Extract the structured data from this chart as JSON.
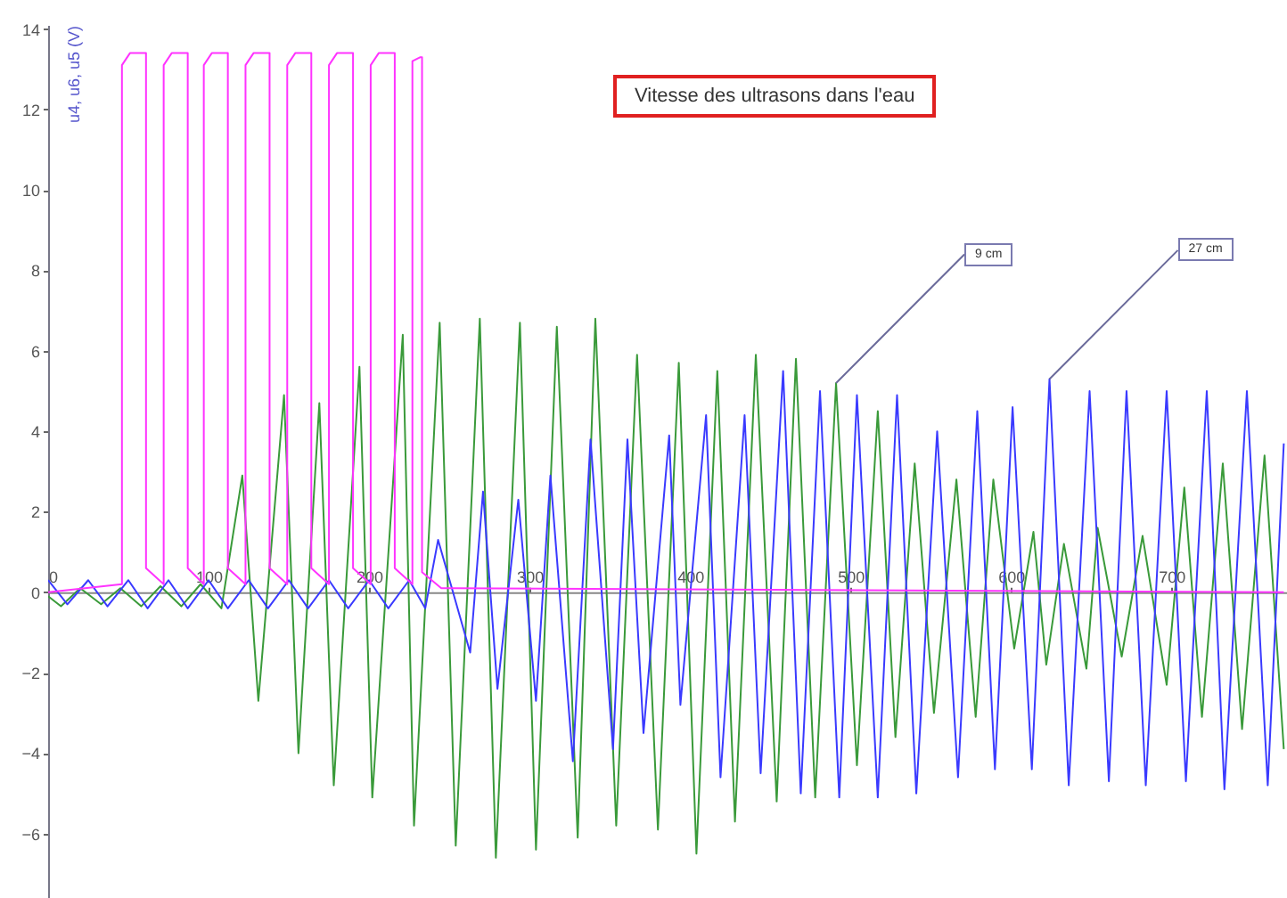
{
  "chart_data": {
    "type": "line",
    "title": "Vitesse des ultrasons dans l'eau",
    "ylabel": "u4, u6, u5 (V)",
    "xlim": [
      0,
      772
    ],
    "ylim": [
      -7.6,
      14.1
    ],
    "xticks": [
      0,
      100,
      200,
      300,
      400,
      500,
      600,
      700
    ],
    "yticks": [
      -6,
      -4,
      -2,
      0,
      2,
      4,
      6,
      8,
      10,
      12,
      14
    ],
    "annotations": [
      {
        "text": "9 cm",
        "x": 491,
        "y": 5.2
      },
      {
        "text": "27 cm",
        "x": 624,
        "y": 5.3
      }
    ],
    "series": [
      {
        "color": "#3a9a3a",
        "x": [
          0,
          8,
          20,
          33,
          45,
          58,
          70,
          83,
          95,
          108,
          121,
          131,
          147,
          156,
          169,
          178,
          194,
          202,
          221,
          228,
          244,
          254,
          269,
          279,
          294,
          304,
          317,
          330,
          341,
          354,
          367,
          380,
          393,
          404,
          417,
          428,
          441,
          454,
          466,
          478,
          491,
          504,
          517,
          528,
          540,
          552,
          566,
          578,
          589,
          602,
          614,
          622,
          633,
          647,
          654,
          669,
          682,
          697,
          708,
          719,
          732,
          744,
          758,
          770
        ],
        "values": [
          -0.1,
          -0.35,
          0.1,
          -0.3,
          0.1,
          -0.35,
          0.15,
          -0.35,
          0.2,
          -0.4,
          2.9,
          -2.7,
          4.9,
          -4.0,
          4.7,
          -4.8,
          5.6,
          -5.1,
          6.4,
          -5.8,
          6.7,
          -6.3,
          6.8,
          -6.6,
          6.7,
          -6.4,
          6.6,
          -6.1,
          6.8,
          -5.8,
          5.9,
          -5.9,
          5.7,
          -6.5,
          5.5,
          -5.7,
          5.9,
          -5.2,
          5.8,
          -5.1,
          5.2,
          -4.3,
          4.5,
          -3.6,
          3.2,
          -3.0,
          2.8,
          -3.1,
          2.8,
          -1.4,
          1.5,
          -1.8,
          1.2,
          -1.9,
          1.6,
          -1.6,
          1.4,
          -2.3,
          2.6,
          -3.1,
          3.2,
          -3.4,
          3.4,
          -3.9
        ]
      },
      {
        "color": "#3a3aff",
        "x": [
          0,
          12,
          25,
          37,
          50,
          62,
          75,
          87,
          100,
          112,
          125,
          137,
          150,
          162,
          175,
          187,
          200,
          212,
          225,
          235,
          243,
          263,
          271,
          280,
          293,
          304,
          313,
          327,
          338,
          352,
          361,
          371,
          387,
          394,
          410,
          419,
          434,
          444,
          458,
          469,
          481,
          493,
          504,
          517,
          529,
          541,
          554,
          567,
          579,
          590,
          601,
          613,
          624,
          636,
          649,
          661,
          672,
          684,
          697,
          709,
          722,
          733,
          747,
          760,
          770
        ],
        "values": [
          0.3,
          -0.3,
          0.3,
          -0.35,
          0.3,
          -0.4,
          0.3,
          -0.4,
          0.3,
          -0.4,
          0.3,
          -0.4,
          0.3,
          -0.4,
          0.3,
          -0.4,
          0.3,
          -0.4,
          0.3,
          -0.4,
          1.3,
          -1.5,
          2.5,
          -2.4,
          2.3,
          -2.7,
          2.9,
          -4.2,
          3.8,
          -3.9,
          3.8,
          -3.5,
          3.9,
          -2.8,
          4.4,
          -4.6,
          4.4,
          -4.5,
          5.5,
          -5.0,
          5.0,
          -5.1,
          4.9,
          -5.1,
          4.9,
          -5.0,
          4.0,
          -4.6,
          4.5,
          -4.4,
          4.6,
          -4.4,
          5.3,
          -4.8,
          5.0,
          -4.7,
          5.0,
          -4.8,
          5.0,
          -4.7,
          5.0,
          -4.9,
          5.0,
          -4.8,
          3.7
        ]
      },
      {
        "color": "#ff33ff",
        "x": [
          0,
          46,
          46,
          51,
          61,
          61,
          72,
          72,
          77,
          87,
          87,
          97,
          97,
          102,
          112,
          112,
          123,
          123,
          128,
          138,
          138,
          149,
          149,
          154,
          164,
          164,
          175,
          175,
          180,
          190,
          190,
          201,
          201,
          206,
          216,
          216,
          227,
          227,
          232,
          233,
          233,
          245,
          770
        ],
        "values": [
          0,
          0.2,
          13.1,
          13.4,
          13.4,
          0.6,
          0.2,
          13.1,
          13.4,
          13.4,
          0.6,
          0.2,
          13.1,
          13.4,
          13.4,
          0.6,
          0.2,
          13.1,
          13.4,
          13.4,
          0.6,
          0.2,
          13.1,
          13.4,
          13.4,
          0.6,
          0.2,
          13.1,
          13.4,
          13.4,
          0.6,
          0.2,
          13.1,
          13.4,
          13.4,
          0.6,
          0.2,
          13.2,
          13.3,
          13.3,
          0.5,
          0.1,
          0
        ]
      }
    ]
  }
}
